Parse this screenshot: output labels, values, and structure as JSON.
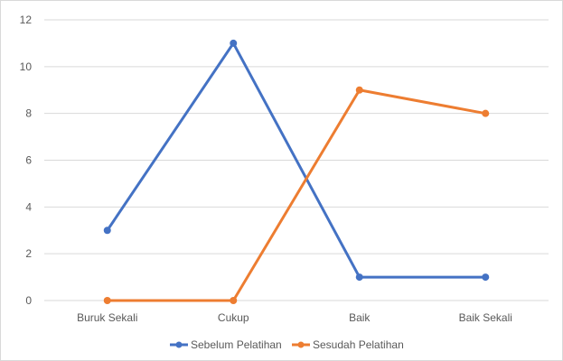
{
  "chart_data": {
    "type": "line",
    "title": "",
    "xlabel": "",
    "ylabel": "",
    "categories": [
      "Buruk Sekali",
      "Cukup",
      "Baik",
      "Baik Sekali"
    ],
    "ylim": [
      0,
      12
    ],
    "yticks": [
      0,
      2,
      4,
      6,
      8,
      10,
      12
    ],
    "grid": true,
    "legend": "bottom",
    "series": [
      {
        "name": "Sebelum Pelatihan",
        "values": [
          3,
          11,
          1,
          1
        ],
        "color": "#4472c4"
      },
      {
        "name": "Sesudah Pelatihan",
        "values": [
          0,
          0,
          9,
          8
        ],
        "color": "#ed7d31"
      }
    ]
  }
}
